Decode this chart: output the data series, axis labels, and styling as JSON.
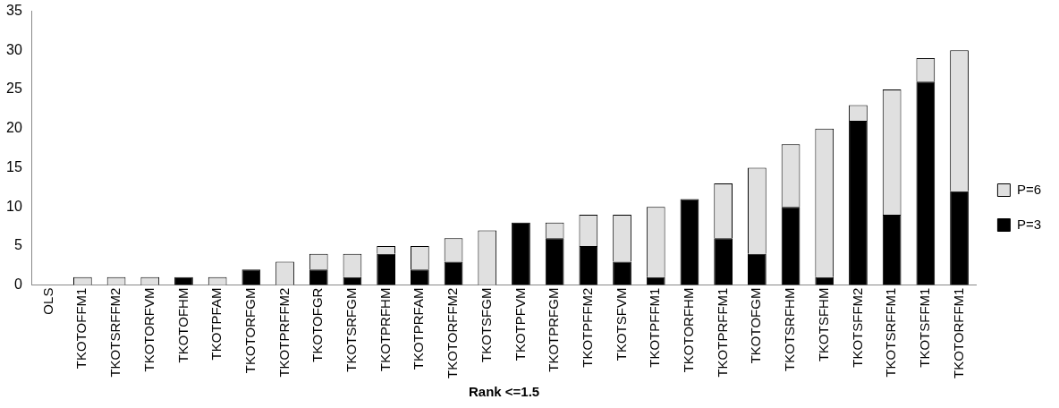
{
  "chart_data": {
    "type": "bar",
    "stacked": true,
    "xlabel": "Rank <=1.5",
    "categories": [
      "OLS",
      "TKOTOFFM1",
      "TKOTSRFFM2",
      "TKOTORFVM",
      "TKOTOFHM",
      "TKOTPFAM",
      "TKOTORFGM",
      "TKOTPRFFM2",
      "TKOTOFGR",
      "TKOTSRFGM",
      "TKOTPRFHM",
      "TKOTPRFAM",
      "TKOTORFFM2",
      "TKOTSFGM",
      "TKOTPFVM",
      "TKOTPRFGM",
      "TKOTPFFM2",
      "TKOTSFVM",
      "TKOTPFFM1",
      "TKOTORFHM",
      "TKOTPRFFM1",
      "TKOTOFGM",
      "TKOTSRFHM",
      "TKOTSFHM",
      "TKOTSFFM2",
      "TKOTSRFFM1",
      "TKOTSFFM1",
      "TKOTORFFM1"
    ],
    "series": [
      {
        "name": "P=3",
        "color": "#000000",
        "values": [
          0,
          0,
          0,
          0,
          1,
          0,
          2,
          0,
          2,
          1,
          4,
          2,
          3,
          0,
          8,
          6,
          5,
          3,
          1,
          11,
          6,
          4,
          10,
          1,
          21,
          9,
          26,
          12
        ]
      },
      {
        "name": "P=6",
        "color": "#e0e0e0",
        "values": [
          0,
          1,
          1,
          1,
          0,
          1,
          0,
          3,
          2,
          3,
          1,
          3,
          3,
          7,
          0,
          2,
          4,
          6,
          9,
          0,
          7,
          11,
          8,
          19,
          2,
          16,
          3,
          18
        ]
      }
    ],
    "ylim": [
      0,
      35
    ],
    "yticks": [
      0,
      5,
      10,
      15,
      20,
      25,
      30,
      35
    ],
    "grid": false,
    "legend": "right"
  }
}
